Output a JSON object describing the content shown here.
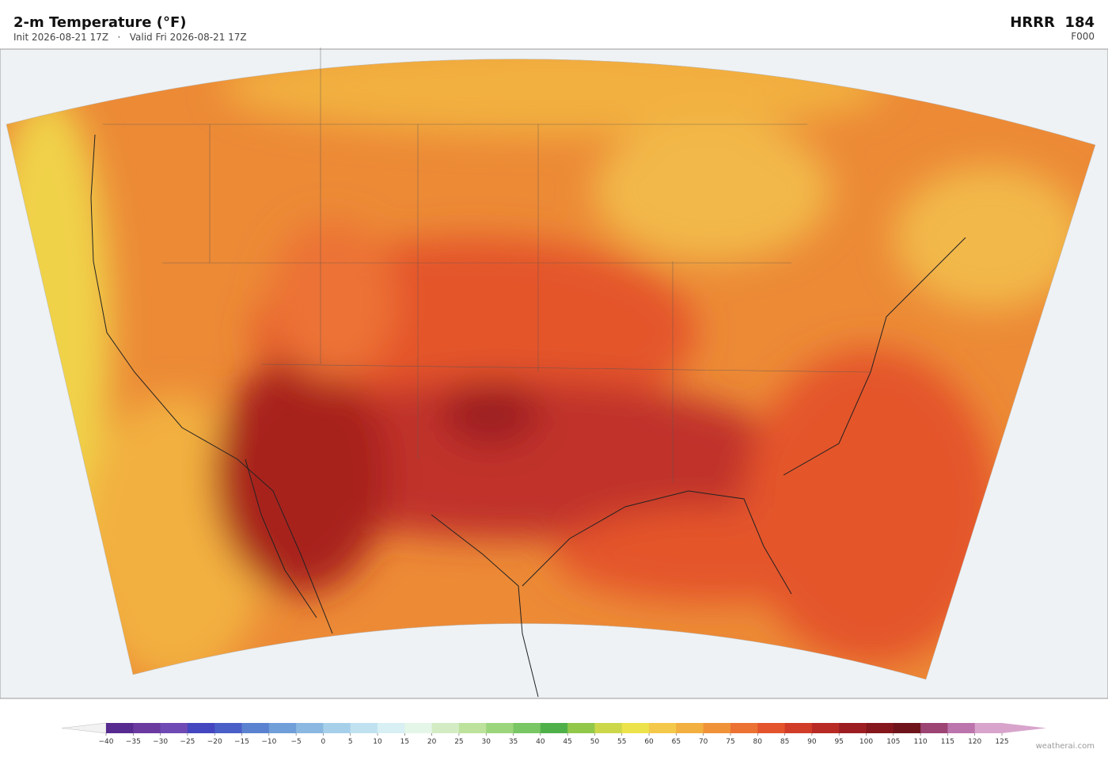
{
  "header": {
    "title": "2-m Temperature  (°F)",
    "subtitle": "Init 2026-08-21 17Z   ·   Valid Fri 2026-08-21 17Z",
    "model": "HRRR  184",
    "forecast_hour": "F000"
  },
  "colorbar": {
    "ticks": [
      {
        "value": -40,
        "label": "−40"
      },
      {
        "value": -35,
        "label": "−35"
      },
      {
        "value": -30,
        "label": "−30"
      },
      {
        "value": -25,
        "label": "−25"
      },
      {
        "value": -20,
        "label": "−20"
      },
      {
        "value": -15,
        "label": "−15"
      },
      {
        "value": -10,
        "label": "−10"
      },
      {
        "value": -5,
        "label": "−5"
      },
      0,
      5,
      10,
      15,
      20,
      25,
      30,
      35,
      40,
      45,
      50,
      55,
      60,
      65,
      70,
      75,
      80,
      85,
      90,
      95,
      100,
      105,
      110,
      115,
      120,
      125
    ],
    "colors": [
      "#562a8f",
      "#6b3a9f",
      "#6f4ab5",
      "#4446c0",
      "#4a5ec8",
      "#5b82d0",
      "#6f9ed8",
      "#8ab8e0",
      "#a6d0ea",
      "#c0e2f0",
      "#d8f0f4",
      "#e4f6e8",
      "#d4ecc4",
      "#bce29c",
      "#9cd67c",
      "#78c664",
      "#4fb04a",
      "#92c84a",
      "#ccd84a",
      "#ece24a",
      "#f4c84a",
      "#f2b040",
      "#f09238",
      "#ec7234",
      "#e4542c",
      "#d03c28",
      "#b82a24",
      "#9c1e22",
      "#84161c",
      "#70141c",
      "#9c4474",
      "#bc74ac",
      "#d8a4cc"
    ],
    "under_color": "#f2f2f2",
    "over_color": "#d8a4cc"
  },
  "footer": {
    "credit": "weatherai.com"
  }
}
